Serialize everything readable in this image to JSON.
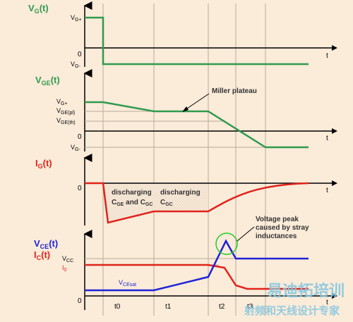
{
  "colors": {
    "background": "#fbebd9",
    "axis": "#000000",
    "green_trace": "#2f9a4e",
    "red_trace": "#e0231b",
    "blue_trace": "#1e22d8",
    "plot_label_green": "#2f9a4e",
    "plot_label_red": "#e0231b",
    "plot_label_blue": "#1e22d8",
    "gridline": "#b8a99a",
    "watermark": "#7fc6e0",
    "hatch": "#c9bcae"
  },
  "plots": {
    "vg": {
      "name_main": "V",
      "name_sub": "G",
      "name_tail": "(t)",
      "origin": "0",
      "t_axis": "t",
      "vg_plus_main": "V",
      "vg_plus_sub": "G+",
      "vg_minus_main": "V",
      "vg_minus_sub": "G-"
    },
    "vge": {
      "name_main": "V",
      "name_sub": "GE",
      "name_tail": "(t)",
      "origin": "0",
      "t_axis": "t",
      "lvl1_main": "V",
      "lvl1_sub": "G+",
      "lvl2_main": "V",
      "lvl2_sub": "GE(pl)",
      "lvl3_main": "V",
      "lvl3_sub": "GE(th)",
      "lvl4_main": "V",
      "lvl4_sub": "G-",
      "annotation": "Miller plateau"
    },
    "ig": {
      "name_main": "I",
      "name_sub": "G",
      "name_tail": "(t)",
      "origin": "0",
      "t_axis": "t",
      "discharging_1_line1": "discharging",
      "discharging_1_line2_a": "C",
      "discharging_1_line2_a_sub": "GE",
      "discharging_1_line2_b": " and C",
      "discharging_1_line2_b_sub": "GC",
      "discharging_2_line1": "discharging",
      "discharging_2_line2": "C",
      "discharging_2_line2_sub": "GC"
    },
    "vce": {
      "name1_main": "V",
      "name1_sub": "CE",
      "name1_tail": "(t)",
      "name2_main": "I",
      "name2_sub": "C",
      "name2_tail": "(t)",
      "origin": "0",
      "t_axis": "t",
      "vcc_main": "V",
      "vcc_sub": "CC",
      "i0_main": "I",
      "i0_sub": "0",
      "vcesat_main": "V",
      "vcesat_sub": "CEsat",
      "peak_line1": "Voltage peak",
      "peak_line2": "caused by stray",
      "peak_line3": "inductances",
      "t0": "t0",
      "t1": "t1",
      "t2": "t2",
      "t3": "t3"
    }
  },
  "watermark": {
    "line1": "易迪拓培训",
    "line2": "射频和天线设计专家"
  }
}
